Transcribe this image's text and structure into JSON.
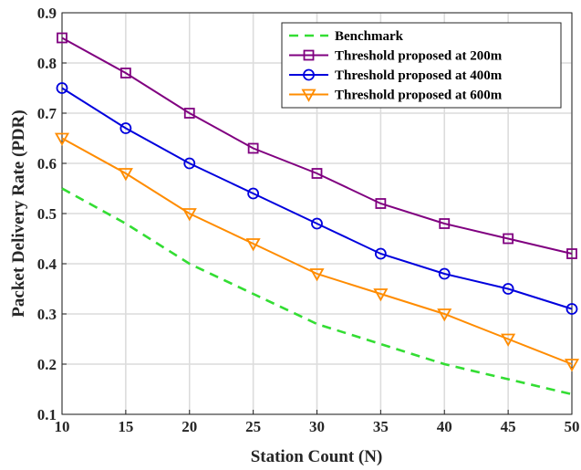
{
  "chart_data": {
    "type": "line",
    "title": "",
    "xlabel": "Station Count (N)",
    "ylabel": "Packet Delivery Rate (PDR)",
    "xlim": [
      10,
      50
    ],
    "ylim": [
      0.1,
      0.9
    ],
    "x": [
      10,
      15,
      20,
      25,
      30,
      35,
      40,
      45,
      50
    ],
    "xticks": [
      10,
      15,
      20,
      25,
      30,
      35,
      40,
      45,
      50
    ],
    "yticks": [
      0.1,
      0.2,
      0.3,
      0.4,
      0.5,
      0.6,
      0.7,
      0.8,
      0.9
    ],
    "grid": true,
    "legend_position": "top-right",
    "series": [
      {
        "name": "Benchmark",
        "color": "#33dd33",
        "style": "dashed",
        "marker": "none",
        "values": [
          0.55,
          0.48,
          0.4,
          0.34,
          0.28,
          0.24,
          0.2,
          0.17,
          0.14
        ]
      },
      {
        "name": "Threshold proposed at 200m",
        "color": "#800080",
        "style": "solid",
        "marker": "square",
        "values": [
          0.85,
          0.78,
          0.7,
          0.63,
          0.58,
          0.52,
          0.48,
          0.45,
          0.42
        ]
      },
      {
        "name": "Threshold proposed at 400m",
        "color": "#0000dd",
        "style": "solid",
        "marker": "circle",
        "values": [
          0.75,
          0.67,
          0.6,
          0.54,
          0.48,
          0.42,
          0.38,
          0.35,
          0.31
        ]
      },
      {
        "name": "Threshold proposed at 600m",
        "color": "#ff8c00",
        "style": "solid",
        "marker": "triangle-down",
        "values": [
          0.65,
          0.58,
          0.5,
          0.44,
          0.38,
          0.34,
          0.3,
          0.25,
          0.2
        ]
      }
    ]
  }
}
